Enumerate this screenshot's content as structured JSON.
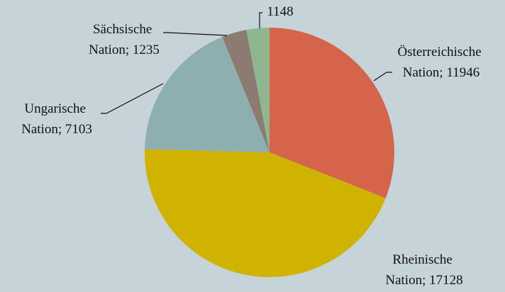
{
  "chart_data": {
    "type": "pie",
    "values": [
      11946,
      17128,
      7103,
      1235,
      1148
    ],
    "value_labels": [
      "Österreichische Nation; 11946",
      "Rheinische Nation; 17128",
      "Ungarische Nation; 7103",
      "Sächsische Nation; 1235",
      "1148"
    ],
    "colors": [
      "#d4654b",
      "#cfb300",
      "#8eafb0",
      "#8b7b70",
      "#8fb68e"
    ],
    "start_angle": 0,
    "direction": "clockwise"
  }
}
